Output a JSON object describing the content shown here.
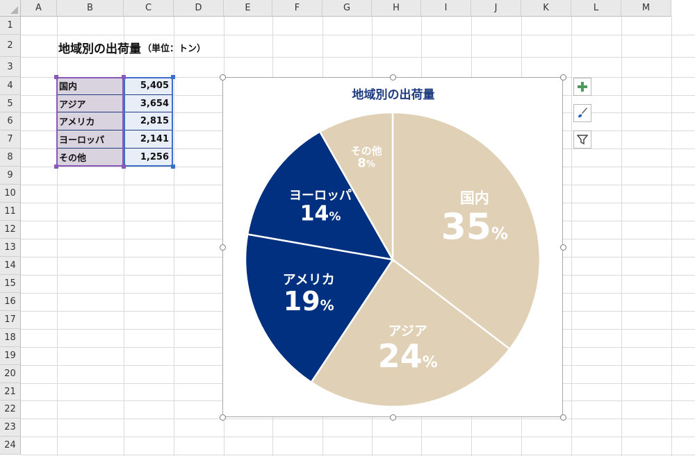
{
  "sheet": {
    "columns": [
      "A",
      "B",
      "C",
      "D",
      "E",
      "F",
      "G",
      "H",
      "I",
      "J",
      "K",
      "L",
      "M"
    ],
    "rows": [
      "1",
      "2",
      "3",
      "4",
      "5",
      "6",
      "7",
      "8",
      "9",
      "10",
      "11",
      "12",
      "13",
      "14",
      "15",
      "16",
      "17",
      "18",
      "19",
      "20",
      "21",
      "22",
      "23",
      "24"
    ],
    "title": "地域別の出荷量",
    "title_note": "（単位：トン）",
    "table": [
      {
        "label": "国内",
        "value": "5,405"
      },
      {
        "label": "アジア",
        "value": "3,654"
      },
      {
        "label": "アメリカ",
        "value": "2,815"
      },
      {
        "label": "ヨーロッパ",
        "value": "2,141"
      },
      {
        "label": "その他",
        "value": "1,256"
      }
    ]
  },
  "chart_data": {
    "type": "pie",
    "title": "地域別の出荷量",
    "categories": [
      "国内",
      "アジア",
      "アメリカ",
      "ヨーロッパ",
      "その他"
    ],
    "values": [
      5405,
      3654,
      2815,
      2141,
      1256
    ],
    "percent_labels": [
      "35",
      "24",
      "19",
      "14",
      "8"
    ],
    "percent_sign": "%",
    "colors": [
      "#e0d0b5",
      "#e0d0b5",
      "#00307f",
      "#00307f",
      "#e0d0b5"
    ],
    "title_color": "#1f3b80"
  },
  "chart_tools": {
    "add_element_icon": "plus-icon",
    "style_icon": "brush-icon",
    "filter_icon": "filter-icon"
  }
}
